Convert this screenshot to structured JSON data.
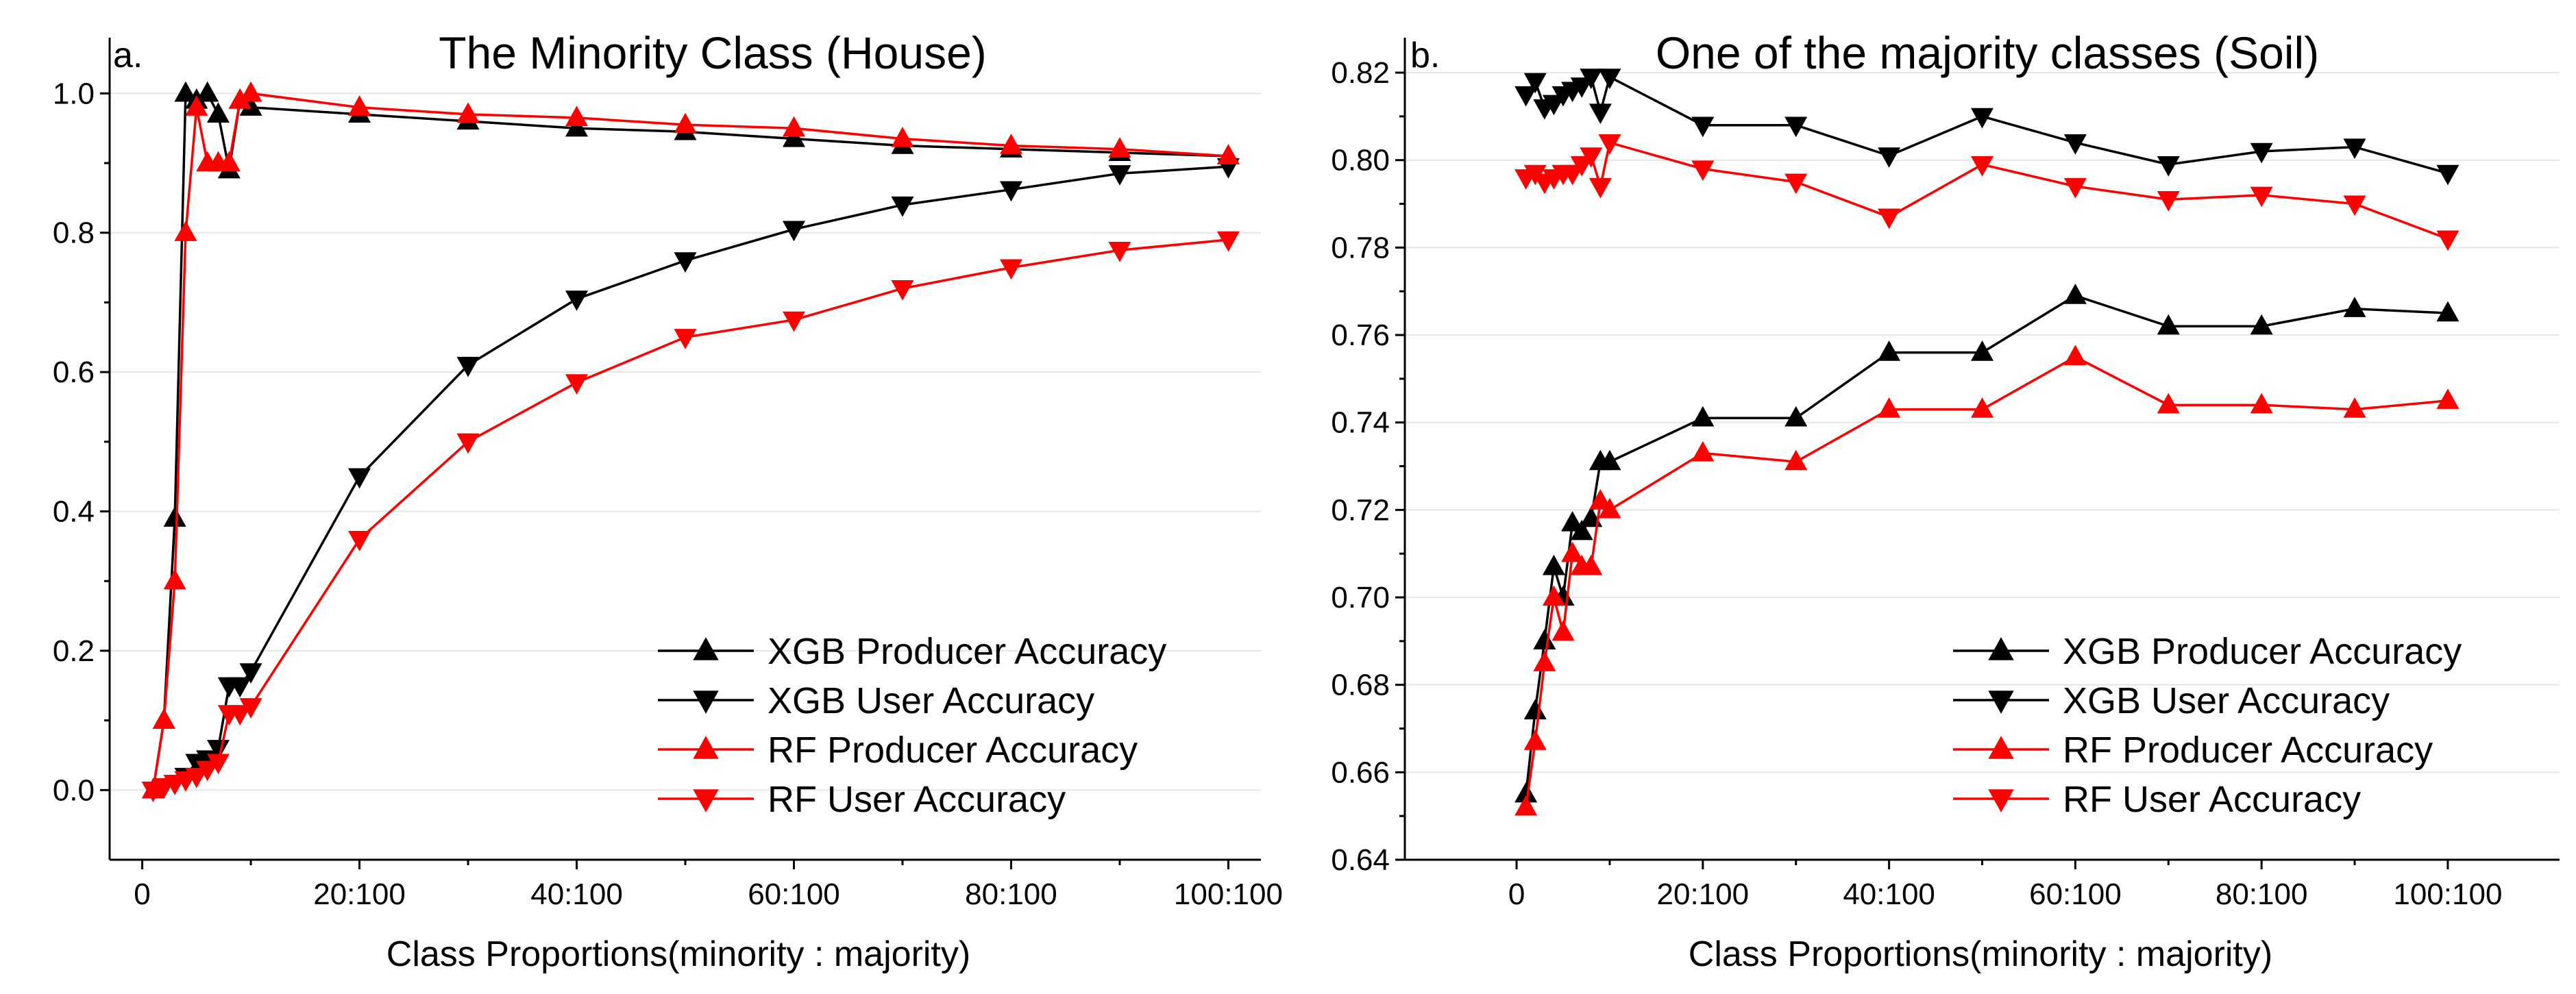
{
  "chart_data": [
    {
      "type": "line",
      "panel_label": "a.",
      "title": "The Minority Class (House)",
      "xlabel": "Class Proportions(minority : majority)",
      "ylabel": "",
      "xlim": [
        -3,
        103
      ],
      "ylim": [
        -0.1,
        1.08
      ],
      "xticks": [
        0,
        20,
        40,
        60,
        80,
        100
      ],
      "xtick_labels": [
        "0",
        "20:100",
        "40:100",
        "60:100",
        "80:100",
        "100:100"
      ],
      "yticks": [
        0.0,
        0.2,
        0.4,
        0.6,
        0.8,
        1.0
      ],
      "ytick_labels": [
        "0.0",
        "0.2",
        "0.4",
        "0.6",
        "0.8",
        "1.0"
      ],
      "grid": true,
      "legend_position": "bottom-right",
      "series": [
        {
          "name": "XGB Producer Accuracy",
          "color": "#000000",
          "marker": "triangle-up",
          "x": [
            1,
            2,
            3,
            4,
            5,
            6,
            7,
            8,
            9,
            10,
            20,
            30,
            40,
            50,
            60,
            70,
            80,
            90,
            100
          ],
          "y": [
            0.0,
            0.1,
            0.39,
            1.0,
            0.99,
            1.0,
            0.97,
            0.89,
            0.99,
            0.98,
            0.97,
            0.96,
            0.95,
            0.945,
            0.935,
            0.925,
            0.92,
            0.915,
            0.91
          ]
        },
        {
          "name": "XGB User Accuracy",
          "color": "#000000",
          "marker": "triangle-down",
          "x": [
            1,
            2,
            3,
            4,
            5,
            6,
            7,
            8,
            9,
            10,
            20,
            30,
            40,
            50,
            60,
            70,
            80,
            90,
            100
          ],
          "y": [
            0.0,
            0.005,
            0.01,
            0.02,
            0.04,
            0.045,
            0.06,
            0.15,
            0.15,
            0.17,
            0.45,
            0.61,
            0.705,
            0.76,
            0.805,
            0.84,
            0.862,
            0.885,
            0.895
          ]
        },
        {
          "name": "RF Producer Accuracy",
          "color": "#ff0000",
          "marker": "triangle-up",
          "x": [
            1,
            2,
            3,
            4,
            5,
            6,
            7,
            8,
            9,
            10,
            20,
            30,
            40,
            50,
            60,
            70,
            80,
            90,
            100
          ],
          "y": [
            0.0,
            0.1,
            0.3,
            0.8,
            0.98,
            0.9,
            0.9,
            0.9,
            0.99,
            1.0,
            0.98,
            0.97,
            0.965,
            0.955,
            0.95,
            0.935,
            0.925,
            0.92,
            0.91
          ]
        },
        {
          "name": "RF User Accuracy",
          "color": "#ff0000",
          "marker": "triangle-down",
          "x": [
            1,
            2,
            3,
            4,
            5,
            6,
            7,
            8,
            9,
            10,
            20,
            30,
            40,
            50,
            60,
            70,
            80,
            90,
            100
          ],
          "y": [
            0.0,
            0.005,
            0.01,
            0.015,
            0.02,
            0.03,
            0.04,
            0.11,
            0.11,
            0.12,
            0.36,
            0.5,
            0.585,
            0.65,
            0.675,
            0.72,
            0.75,
            0.775,
            0.79
          ]
        }
      ]
    },
    {
      "type": "line",
      "panel_label": "b.",
      "title": "One of the majority classes (Soil)",
      "xlabel": "Class Proportions(minority : majority)",
      "ylabel": "",
      "xlim": [
        -12,
        112
      ],
      "ylim": [
        0.64,
        0.828
      ],
      "xticks": [
        0,
        20,
        40,
        60,
        80,
        100
      ],
      "xtick_labels": [
        "0",
        "20:100",
        "40:100",
        "60:100",
        "80:100",
        "100:100"
      ],
      "yticks": [
        0.64,
        0.66,
        0.68,
        0.7,
        0.72,
        0.74,
        0.76,
        0.78,
        0.8,
        0.82
      ],
      "ytick_labels": [
        "0.64",
        "0.66",
        "0.68",
        "0.70",
        "0.72",
        "0.74",
        "0.76",
        "0.78",
        "0.80",
        "0.82"
      ],
      "grid": true,
      "legend_position": "bottom-right",
      "series": [
        {
          "name": "XGB Producer Accuracy",
          "color": "#000000",
          "marker": "triangle-up",
          "x": [
            1,
            2,
            3,
            4,
            5,
            6,
            7,
            8,
            9,
            10,
            20,
            30,
            40,
            50,
            60,
            70,
            80,
            90,
            100
          ],
          "y": [
            0.655,
            0.674,
            0.69,
            0.707,
            0.7,
            0.717,
            0.715,
            0.718,
            0.731,
            0.731,
            0.741,
            0.741,
            0.756,
            0.756,
            0.769,
            0.762,
            0.762,
            0.766,
            0.765
          ]
        },
        {
          "name": "XGB User Accuracy",
          "color": "#000000",
          "marker": "triangle-down",
          "x": [
            1,
            2,
            3,
            4,
            5,
            6,
            7,
            8,
            9,
            10,
            20,
            30,
            40,
            50,
            60,
            70,
            80,
            90,
            100
          ],
          "y": [
            0.815,
            0.818,
            0.812,
            0.813,
            0.815,
            0.816,
            0.817,
            0.819,
            0.811,
            0.819,
            0.808,
            0.808,
            0.801,
            0.81,
            0.804,
            0.799,
            0.802,
            0.803,
            0.797
          ]
        },
        {
          "name": "RF Producer Accuracy",
          "color": "#ff0000",
          "marker": "triangle-up",
          "x": [
            1,
            2,
            3,
            4,
            5,
            6,
            7,
            8,
            9,
            10,
            20,
            30,
            40,
            50,
            60,
            70,
            80,
            90,
            100
          ],
          "y": [
            0.652,
            0.667,
            0.685,
            0.7,
            0.692,
            0.71,
            0.707,
            0.707,
            0.722,
            0.72,
            0.733,
            0.731,
            0.743,
            0.743,
            0.755,
            0.744,
            0.744,
            0.743,
            0.745
          ]
        },
        {
          "name": "RF User Accuracy",
          "color": "#ff0000",
          "marker": "triangle-down",
          "x": [
            1,
            2,
            3,
            4,
            5,
            6,
            7,
            8,
            9,
            10,
            20,
            30,
            40,
            50,
            60,
            70,
            80,
            90,
            100
          ],
          "y": [
            0.796,
            0.797,
            0.795,
            0.796,
            0.797,
            0.797,
            0.799,
            0.801,
            0.794,
            0.804,
            0.798,
            0.795,
            0.787,
            0.799,
            0.794,
            0.791,
            0.792,
            0.79,
            0.782
          ]
        }
      ]
    }
  ]
}
